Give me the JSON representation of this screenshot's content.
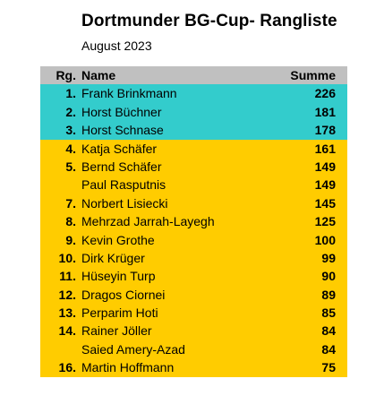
{
  "title": "Dortmunder BG-Cup- Rangliste",
  "subtitle": "August 2023",
  "columns": {
    "rank": "Rg.",
    "name": "Name",
    "sum": "Summe"
  },
  "colors": {
    "header": "#c0c0c0",
    "top3": "#33cccc",
    "rest": "#ffcc00"
  },
  "rows": [
    {
      "rank": "1.",
      "name": "Frank Brinkmann",
      "sum": "226",
      "group": "top3"
    },
    {
      "rank": "2.",
      "name": "Horst Büchner",
      "sum": "181",
      "group": "top3"
    },
    {
      "rank": "3.",
      "name": "Horst Schnase",
      "sum": "178",
      "group": "top3"
    },
    {
      "rank": "4.",
      "name": "Katja Schäfer",
      "sum": "161",
      "group": "rest"
    },
    {
      "rank": "5.",
      "name": "Bernd Schäfer",
      "sum": "149",
      "group": "rest"
    },
    {
      "rank": "",
      "name": "Paul Rasputnis",
      "sum": "149",
      "group": "rest"
    },
    {
      "rank": "7.",
      "name": "Norbert Lisiecki",
      "sum": "145",
      "group": "rest"
    },
    {
      "rank": "8.",
      "name": "Mehrzad Jarrah-Layegh",
      "sum": "125",
      "group": "rest"
    },
    {
      "rank": "9.",
      "name": "Kevin Grothe",
      "sum": "100",
      "group": "rest"
    },
    {
      "rank": "10.",
      "name": "Dirk Krüger",
      "sum": "99",
      "group": "rest"
    },
    {
      "rank": "11.",
      "name": "Hüseyin Turp",
      "sum": "90",
      "group": "rest"
    },
    {
      "rank": "12.",
      "name": "Dragos Ciornei",
      "sum": "89",
      "group": "rest"
    },
    {
      "rank": "13.",
      "name": "Perparim Hoti",
      "sum": "85",
      "group": "rest"
    },
    {
      "rank": "14.",
      "name": "Rainer Jöller",
      "sum": "84",
      "group": "rest"
    },
    {
      "rank": "",
      "name": "Saied Amery-Azad",
      "sum": "84",
      "group": "rest"
    },
    {
      "rank": "16.",
      "name": "Martin Hoffmann",
      "sum": "75",
      "group": "rest"
    }
  ]
}
